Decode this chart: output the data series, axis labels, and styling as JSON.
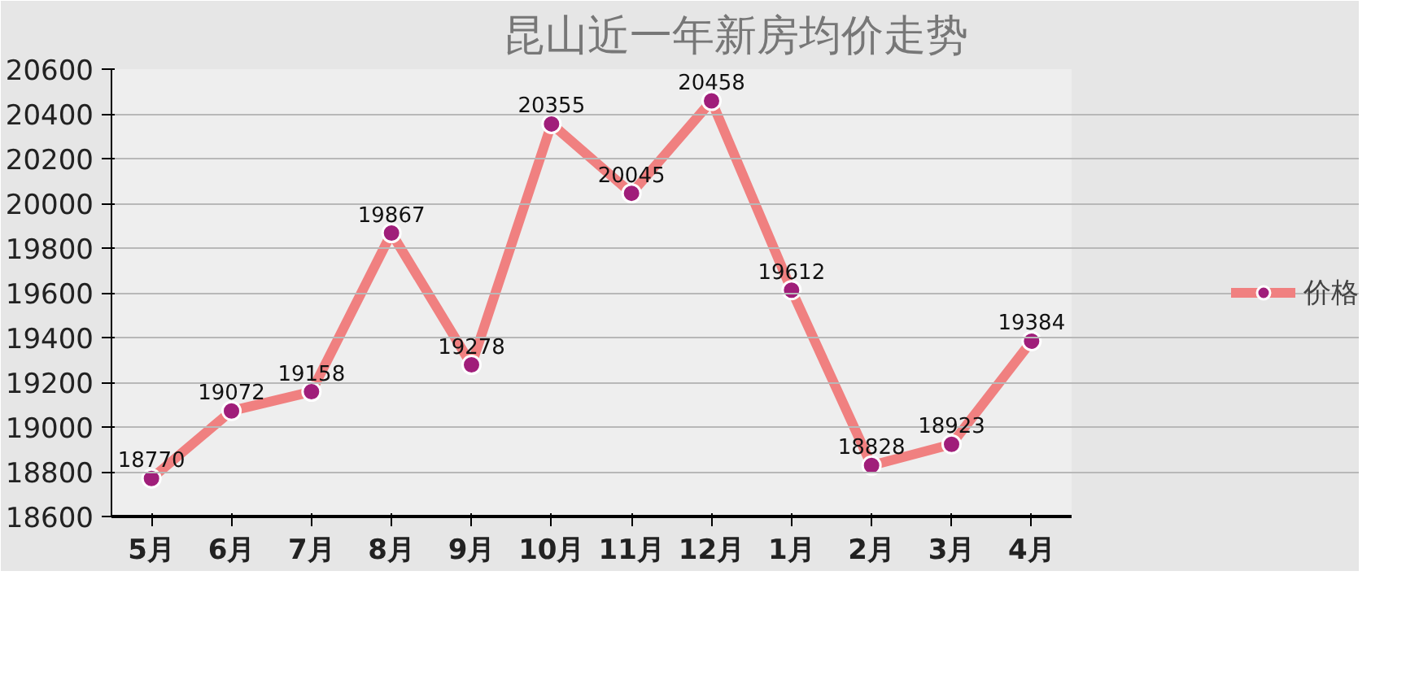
{
  "chart_data": {
    "type": "line",
    "title": "昆山近一年新房均价走势",
    "categories": [
      "5月",
      "6月",
      "7月",
      "8月",
      "9月",
      "10月",
      "11月",
      "12月",
      "1月",
      "2月",
      "3月",
      "4月"
    ],
    "series": [
      {
        "name": "价格",
        "color": "#f08080",
        "values": [
          18770,
          19072,
          19158,
          19867,
          19278,
          20355,
          20045,
          20458,
          19612,
          18828,
          18923,
          19384
        ]
      }
    ],
    "ylim": [
      18600,
      20600
    ],
    "yticks": [
      18600,
      18800,
      19000,
      19200,
      19400,
      19600,
      19800,
      20000,
      20200,
      20400,
      20600
    ],
    "grid": "y",
    "legend": "right",
    "marker": "circle",
    "line_style": "solid",
    "data_labels": true
  }
}
